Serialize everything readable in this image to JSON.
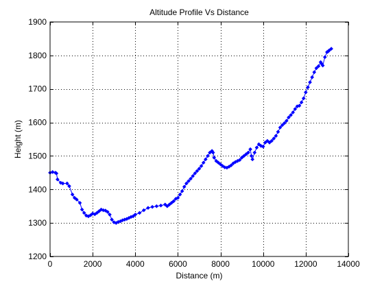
{
  "chart_data": {
    "type": "line",
    "title": "Altitude Profile Vs Distance",
    "xlabel": "Distance (m)",
    "ylabel": "Height (m)",
    "xlim": [
      0,
      14000
    ],
    "ylim": [
      1200,
      1900
    ],
    "xticks": [
      0,
      2000,
      4000,
      6000,
      8000,
      10000,
      12000,
      14000
    ],
    "yticks": [
      1200,
      1300,
      1400,
      1500,
      1600,
      1700,
      1800,
      1900
    ],
    "grid": true,
    "marker": "diamond",
    "series_color": "#0000ff",
    "x": [
      0,
      120,
      250,
      300,
      350,
      500,
      600,
      800,
      900,
      1050,
      1150,
      1250,
      1400,
      1500,
      1600,
      1700,
      1800,
      1900,
      2000,
      2100,
      2200,
      2300,
      2400,
      2500,
      2600,
      2700,
      2800,
      2900,
      3000,
      3100,
      3200,
      3300,
      3400,
      3500,
      3600,
      3700,
      3800,
      3900,
      4000,
      4200,
      4400,
      4600,
      4800,
      5000,
      5200,
      5400,
      5500,
      5600,
      5700,
      5800,
      5900,
      6000,
      6100,
      6200,
      6300,
      6400,
      6500,
      6600,
      6700,
      6800,
      6900,
      7000,
      7100,
      7200,
      7300,
      7400,
      7500,
      7600,
      7650,
      7700,
      7800,
      7900,
      8000,
      8100,
      8200,
      8300,
      8400,
      8500,
      8600,
      8700,
      8800,
      8900,
      9000,
      9100,
      9200,
      9300,
      9400,
      9450,
      9500,
      9600,
      9700,
      9800,
      9900,
      10000,
      10100,
      10200,
      10300,
      10400,
      10500,
      10600,
      10700,
      10800,
      10900,
      11000,
      11100,
      11200,
      11300,
      11400,
      11500,
      11600,
      11700,
      11800,
      11900,
      12000,
      12100,
      12200,
      12300,
      12400,
      12500,
      12600,
      12700,
      12750,
      12800,
      12900,
      13000,
      13050,
      13100,
      13200
    ],
    "y": [
      1450,
      1452,
      1450,
      1448,
      1430,
      1420,
      1418,
      1418,
      1410,
      1385,
      1375,
      1370,
      1360,
      1340,
      1330,
      1322,
      1320,
      1323,
      1328,
      1326,
      1330,
      1335,
      1340,
      1338,
      1337,
      1333,
      1325,
      1310,
      1302,
      1300,
      1303,
      1305,
      1308,
      1310,
      1312,
      1315,
      1318,
      1320,
      1325,
      1330,
      1338,
      1345,
      1348,
      1350,
      1352,
      1355,
      1350,
      1355,
      1360,
      1365,
      1372,
      1375,
      1385,
      1395,
      1408,
      1418,
      1425,
      1432,
      1440,
      1448,
      1455,
      1462,
      1470,
      1480,
      1490,
      1500,
      1510,
      1515,
      1510,
      1495,
      1485,
      1480,
      1475,
      1470,
      1466,
      1465,
      1468,
      1472,
      1478,
      1482,
      1485,
      1488,
      1495,
      1500,
      1505,
      1510,
      1520,
      1500,
      1490,
      1510,
      1525,
      1535,
      1530,
      1528,
      1540,
      1545,
      1540,
      1545,
      1552,
      1560,
      1572,
      1585,
      1592,
      1598,
      1605,
      1615,
      1622,
      1630,
      1640,
      1648,
      1650,
      1660,
      1672,
      1690,
      1705,
      1720,
      1735,
      1750,
      1762,
      1768,
      1780,
      1775,
      1770,
      1795,
      1810,
      1812,
      1815,
      1820
    ]
  }
}
